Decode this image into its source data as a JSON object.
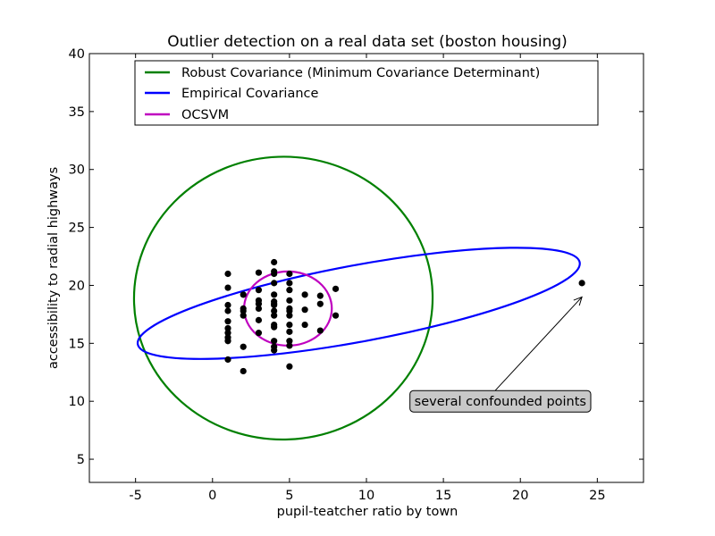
{
  "chart_data": {
    "type": "scatter",
    "title": "Outlier detection on a real data set (boston housing)",
    "xlabel": "pupil-teatcher ratio by town",
    "ylabel": "accessibility to radial highways",
    "xlim": [
      -8,
      28
    ],
    "ylim": [
      3,
      40
    ],
    "xticks": [
      -5,
      0,
      5,
      10,
      15,
      20,
      25
    ],
    "yticks": [
      5,
      10,
      15,
      20,
      25,
      30,
      35,
      40
    ],
    "grid": false,
    "legend_position": "top",
    "series": [
      {
        "name": "Robust Covariance (Minimum Covariance Determinant)",
        "kind": "contour",
        "color": "#008000",
        "shape": {
          "cx": 4.6,
          "cy": 18.9,
          "rx": 9.7,
          "ry": 12.2,
          "angle_deg": 2
        }
      },
      {
        "name": "Empirical Covariance",
        "kind": "contour",
        "color": "#0000ff",
        "shape": {
          "cx": 9.5,
          "cy": 18.45,
          "rx": 14.6,
          "ry": 3.3,
          "angle_deg": 10.5
        }
      },
      {
        "name": "OCSVM",
        "kind": "contour",
        "color": "#bf00bf",
        "shape": {
          "cx": 4.9,
          "cy": 18.0,
          "rx": 2.85,
          "ry": 3.2,
          "angle_deg": 0
        }
      }
    ],
    "points": [
      [
        1,
        21.0
      ],
      [
        1,
        19.8
      ],
      [
        1,
        18.3
      ],
      [
        1,
        17.8
      ],
      [
        1,
        16.9
      ],
      [
        1,
        16.3
      ],
      [
        1,
        15.9
      ],
      [
        1,
        15.5
      ],
      [
        1,
        15.2
      ],
      [
        1,
        13.6
      ],
      [
        2,
        19.2
      ],
      [
        2,
        18.0
      ],
      [
        2,
        17.8
      ],
      [
        2,
        17.4
      ],
      [
        2,
        14.7
      ],
      [
        2,
        12.6
      ],
      [
        3,
        21.1
      ],
      [
        3,
        19.6
      ],
      [
        3,
        18.7
      ],
      [
        3,
        18.4
      ],
      [
        3,
        18.0
      ],
      [
        3,
        17.0
      ],
      [
        3,
        15.9
      ],
      [
        4,
        22.0
      ],
      [
        4,
        21.2
      ],
      [
        4,
        21.0
      ],
      [
        4,
        20.2
      ],
      [
        4,
        19.2
      ],
      [
        4,
        18.6
      ],
      [
        4,
        18.4
      ],
      [
        4,
        18.3
      ],
      [
        4,
        17.8
      ],
      [
        4,
        17.4
      ],
      [
        4,
        16.6
      ],
      [
        4,
        16.4
      ],
      [
        4,
        15.2
      ],
      [
        4,
        14.7
      ],
      [
        4,
        14.4
      ],
      [
        5,
        21.0
      ],
      [
        5,
        20.2
      ],
      [
        5,
        19.6
      ],
      [
        5,
        18.7
      ],
      [
        5,
        18.0
      ],
      [
        5,
        17.8
      ],
      [
        5,
        17.4
      ],
      [
        5,
        16.6
      ],
      [
        5,
        16.0
      ],
      [
        5,
        15.2
      ],
      [
        5,
        14.8
      ],
      [
        5,
        13.0
      ],
      [
        6,
        19.2
      ],
      [
        6,
        17.9
      ],
      [
        6,
        16.6
      ],
      [
        7,
        19.1
      ],
      [
        7,
        18.4
      ],
      [
        7,
        16.1
      ],
      [
        8,
        19.7
      ],
      [
        8,
        17.4
      ],
      [
        24,
        20.2
      ]
    ],
    "annotation": {
      "text": "several confounded points",
      "xy": [
        24,
        19
      ],
      "xytext": [
        13,
        10
      ]
    }
  }
}
